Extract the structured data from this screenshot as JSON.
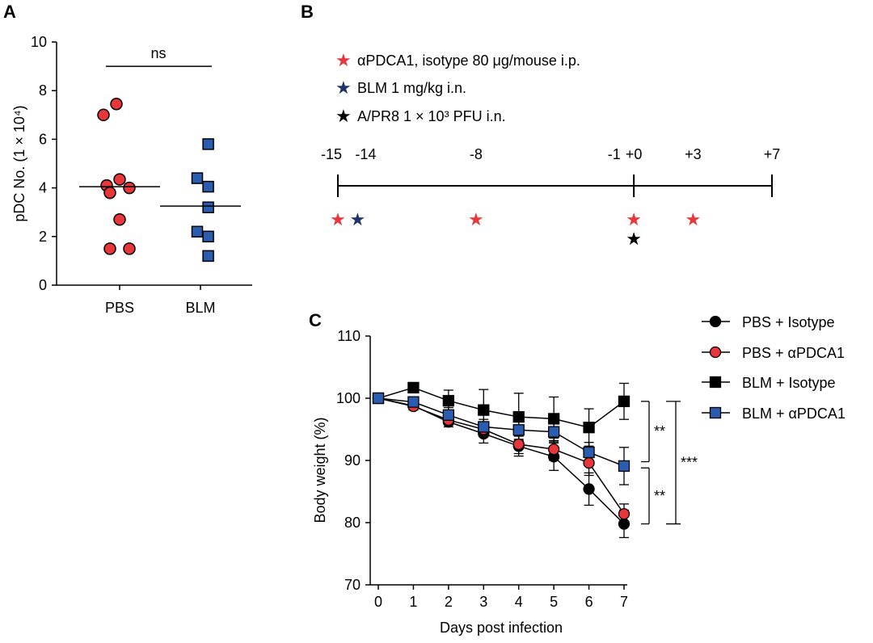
{
  "panel_labels": {
    "a": "A",
    "b": "B",
    "c": "C"
  },
  "colors": {
    "red": "#e8363a",
    "blue": "#2a5db0",
    "navy": "#1f3466",
    "black": "#000000"
  },
  "chart_data": [
    {
      "id": "A",
      "type": "scatter",
      "title": "",
      "xlabel": "",
      "ylabel": "pDC No. (1 × 10⁴)",
      "ylim": [
        0,
        10
      ],
      "yticks": [
        0,
        2,
        4,
        6,
        8,
        10
      ],
      "categories": [
        "PBS",
        "BLM"
      ],
      "series": [
        {
          "name": "PBS",
          "marker": "circle",
          "color": "#e8363a",
          "median": 4.05,
          "points": [
            [
              -0.25,
              7.0
            ],
            [
              -0.05,
              7.45
            ],
            [
              -0.2,
              4.1
            ],
            [
              0.0,
              4.35
            ],
            [
              0.15,
              4.0
            ],
            [
              -0.15,
              3.8
            ],
            [
              0.0,
              2.7
            ],
            [
              -0.15,
              1.5
            ],
            [
              0.15,
              1.5
            ]
          ]
        },
        {
          "name": "BLM",
          "marker": "square",
          "color": "#2a5db0",
          "median": 3.25,
          "points": [
            [
              0.12,
              5.8
            ],
            [
              -0.05,
              4.4
            ],
            [
              0.12,
              4.05
            ],
            [
              0.12,
              3.2
            ],
            [
              -0.05,
              2.2
            ],
            [
              0.12,
              2.0
            ],
            [
              0.12,
              1.2
            ]
          ]
        }
      ],
      "annotations": [
        {
          "text": "ns",
          "between": [
            "PBS",
            "BLM"
          ],
          "y": 9.0
        }
      ]
    },
    {
      "id": "B",
      "type": "timeline",
      "legend": [
        {
          "color": "#e8363a",
          "text": "αPDCA1, isotype 80 μg/mouse i.p."
        },
        {
          "color": "#1f3466",
          "text": "BLM 1 mg/kg i.n."
        },
        {
          "color": "#000000",
          "text": "A/PR8 1 × 10³ PFU i.n."
        }
      ],
      "range": [
        -15,
        7
      ],
      "tick_labels": [
        {
          "day": -15,
          "label": "-15"
        },
        {
          "day": -14,
          "label": "-14"
        },
        {
          "day": -8,
          "label": "-8"
        },
        {
          "day": -1,
          "label": "-1"
        },
        {
          "day": 0,
          "label": "+0"
        },
        {
          "day": 3,
          "label": "+3"
        },
        {
          "day": 7,
          "label": "+7"
        }
      ],
      "events": [
        {
          "day": -15,
          "color": "#e8363a",
          "row": 0
        },
        {
          "day": -14,
          "color": "#1f3466",
          "row": 0
        },
        {
          "day": -8,
          "color": "#e8363a",
          "row": 0
        },
        {
          "day": 0,
          "color": "#e8363a",
          "row": 0
        },
        {
          "day": 3,
          "color": "#e8363a",
          "row": 0
        },
        {
          "day": 0,
          "color": "#000000",
          "row": 1
        }
      ]
    },
    {
      "id": "C",
      "type": "line",
      "title": "",
      "xlabel": "Days post infection",
      "ylabel": "Body weight (%)",
      "ylim": [
        70,
        110
      ],
      "yticks": [
        70,
        80,
        90,
        100,
        110
      ],
      "x": [
        0,
        1,
        2,
        3,
        4,
        5,
        6,
        7
      ],
      "series": [
        {
          "name": "PBS + Isotype",
          "marker": "circle",
          "fill": "#000000",
          "values": [
            100,
            98.8,
            96.2,
            94.3,
            92.3,
            90.6,
            85.4,
            79.8
          ],
          "errors": [
            0,
            0.6,
            0.8,
            1.5,
            1.6,
            2.2,
            2.6,
            2.2
          ]
        },
        {
          "name": "PBS + αPDCA1",
          "marker": "circle",
          "fill": "#e8363a",
          "values": [
            100,
            98.7,
            96.5,
            95.0,
            92.6,
            91.8,
            89.6,
            81.4
          ],
          "errors": [
            0,
            0.6,
            0.8,
            1.2,
            1.5,
            1.8,
            2.0,
            1.6
          ]
        },
        {
          "name": "BLM + Isotype",
          "marker": "square",
          "fill": "#000000",
          "values": [
            100,
            101.7,
            99.6,
            98.1,
            97.0,
            96.7,
            95.3,
            99.5
          ],
          "errors": [
            0,
            0.8,
            1.7,
            3.3,
            3.8,
            3.5,
            3.0,
            2.9
          ]
        },
        {
          "name": "BLM + αPDCA1",
          "marker": "square",
          "fill": "#2a5db0",
          "values": [
            100,
            99.4,
            97.3,
            95.4,
            94.9,
            94.6,
            91.3,
            89.1
          ],
          "errors": [
            0,
            0.8,
            1.2,
            1.2,
            1.5,
            1.6,
            1.6,
            3.0
          ]
        }
      ],
      "significance": [
        {
          "text": "**",
          "from": 99.5,
          "to": 89.8
        },
        {
          "text": "**",
          "from": 88.8,
          "to": 79.8
        },
        {
          "text": "***",
          "from": 99.5,
          "to": 79.8
        }
      ]
    }
  ]
}
